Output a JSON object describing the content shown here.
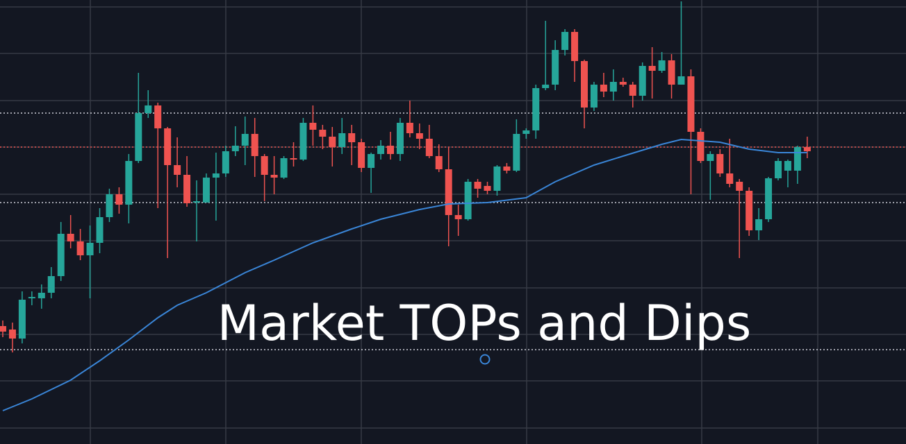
{
  "chart_data": {
    "type": "candlestick",
    "title": "Market TOPs and Dips",
    "up_color": "#26a69a",
    "down_color": "#ef5350",
    "ylim": [
      0,
      640
    ],
    "open": [
      170,
      165,
      152,
      210,
      210,
      218,
      242,
      303,
      292,
      272,
      290,
      327,
      360,
      345,
      408,
      477,
      488,
      455,
      402,
      388,
      348,
      348,
      384,
      390,
      422,
      430,
      447,
      415,
      388,
      384,
      412,
      410,
      463,
      453,
      443,
      428,
      448,
      435,
      398,
      418,
      430,
      418,
      463,
      448,
      440,
      415,
      396,
      330,
      324,
      378,
      372,
      365,
      400,
      394,
      447,
      452,
      513,
      518,
      568,
      594,
      552,
      485,
      518,
      508,
      522,
      518,
      502,
      545,
      538,
      553,
      518,
      530,
      450,
      408,
      418,
      390,
      378,
      365,
      308,
      324,
      383,
      394,
      394,
      428
    ],
    "high": [
      178,
      175,
      220,
      220,
      230,
      255,
      320,
      330,
      310,
      315,
      340,
      368,
      370,
      418,
      535,
      510,
      492,
      457,
      442,
      415,
      380,
      390,
      420,
      430,
      458,
      472,
      470,
      418,
      415,
      415,
      435,
      470,
      488,
      460,
      457,
      470,
      460,
      440,
      420,
      438,
      450,
      470,
      495,
      462,
      460,
      432,
      428,
      345,
      382,
      382,
      378,
      402,
      405,
      468,
      455,
      518,
      610,
      582,
      598,
      598,
      554,
      522,
      535,
      540,
      528,
      522,
      550,
      572,
      565,
      562,
      638,
      540,
      455,
      422,
      425,
      440,
      382,
      370,
      340,
      385,
      412,
      410,
      430,
      443
    ],
    "low": [
      154,
      132,
      145,
      200,
      195,
      210,
      235,
      282,
      265,
      210,
      275,
      320,
      332,
      318,
      405,
      470,
      340,
      268,
      370,
      342,
      292,
      348,
      322,
      385,
      415,
      402,
      385,
      350,
      360,
      382,
      400,
      408,
      430,
      425,
      400,
      418,
      402,
      392,
      362,
      410,
      410,
      408,
      442,
      425,
      412,
      392,
      285,
      300,
      322,
      355,
      360,
      358,
      390,
      392,
      440,
      440,
      510,
      510,
      560,
      522,
      455,
      480,
      500,
      495,
      515,
      485,
      495,
      498,
      535,
      498,
      518,
      360,
      405,
      352,
      385,
      370,
      268,
      300,
      294,
      320,
      380,
      370,
      375,
      412
    ],
    "close": [
      162,
      152,
      208,
      212,
      218,
      242,
      303,
      292,
      272,
      290,
      327,
      360,
      345,
      408,
      477,
      488,
      455,
      402,
      388,
      347,
      350,
      384,
      390,
      422,
      430,
      447,
      415,
      388,
      384,
      412,
      410,
      463,
      453,
      443,
      428,
      448,
      435,
      398,
      418,
      430,
      418,
      463,
      448,
      440,
      415,
      396,
      330,
      324,
      378,
      368,
      365,
      400,
      394,
      447,
      452,
      513,
      518,
      568,
      594,
      552,
      485,
      518,
      508,
      522,
      518,
      502,
      545,
      538,
      553,
      518,
      530,
      450,
      408,
      418,
      390,
      375,
      365,
      308,
      324,
      383,
      408,
      408,
      428,
      422
    ],
    "moving_average": {
      "color": "#3a86d8",
      "x": [
        0,
        3,
        7,
        10,
        13,
        16,
        18,
        21,
        25,
        28,
        32,
        36,
        39,
        43,
        46,
        50,
        54,
        57,
        59,
        61,
        64,
        68,
        70,
        71,
        74,
        77,
        80,
        83
      ],
      "values": [
        48,
        65,
        92,
        120,
        150,
        182,
        200,
        218,
        247,
        265,
        290,
        310,
        324,
        338,
        346,
        348,
        355,
        378,
        390,
        402,
        415,
        432,
        439,
        438,
        435,
        425,
        420,
        420
      ]
    },
    "levels": [
      {
        "value": 477,
        "color": "#d1d4dc"
      },
      {
        "value": 428,
        "color": "#ef5350"
      },
      {
        "value": 348,
        "color": "#d1d4dc"
      },
      {
        "value": 136,
        "color": "#d1d4dc"
      }
    ]
  }
}
